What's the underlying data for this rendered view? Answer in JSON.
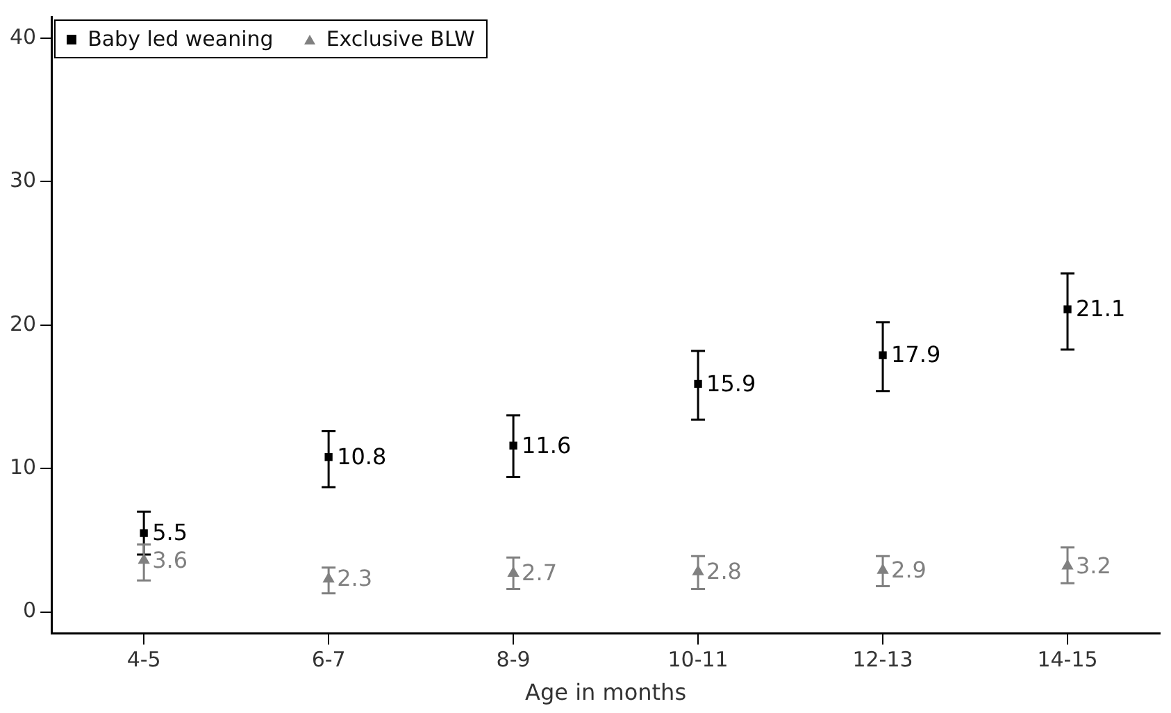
{
  "chart_data": {
    "type": "scatter",
    "xlabel": "Age in months",
    "categories": [
      "4-5",
      "6-7",
      "8-9",
      "10-11",
      "12-13",
      "14-15"
    ],
    "series": [
      {
        "name": "Baby led weaning",
        "color": "#000000",
        "marker": "square",
        "values": [
          5.5,
          10.8,
          11.6,
          15.9,
          17.9,
          21.1
        ],
        "errors": [
          [
            4.0,
            7.0
          ],
          [
            8.7,
            12.6
          ],
          [
            9.4,
            13.7
          ],
          [
            13.4,
            18.2
          ],
          [
            15.4,
            20.2
          ],
          [
            18.3,
            23.6
          ]
        ]
      },
      {
        "name": "Exclusive BLW",
        "color": "#808080",
        "marker": "triangle",
        "values": [
          3.6,
          2.3,
          2.7,
          2.8,
          2.9,
          3.2
        ],
        "errors": [
          [
            2.2,
            4.7
          ],
          [
            1.3,
            3.1
          ],
          [
            1.6,
            3.8
          ],
          [
            1.6,
            3.9
          ],
          [
            1.8,
            3.9
          ],
          [
            2.0,
            4.5
          ]
        ]
      }
    ],
    "ylim": [
      -1.5,
      41.5
    ],
    "yticks": [
      0,
      10,
      20,
      30,
      40
    ],
    "grid": false,
    "legend": "top left",
    "data_labels": true
  }
}
